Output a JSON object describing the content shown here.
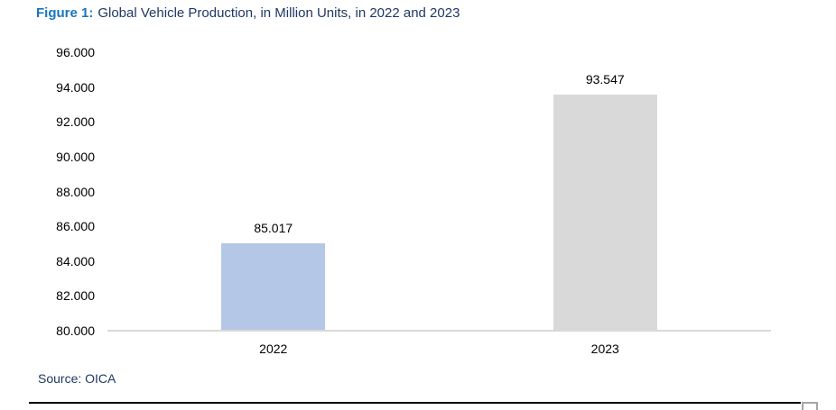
{
  "title": {
    "figure_label": "Figure 1:",
    "text": "Global Vehicle Production, in Million Units, in 2022 and 2023"
  },
  "source": {
    "text": "Source: OICA"
  },
  "chart_data": {
    "type": "bar",
    "title": "Global Vehicle Production, in Million Units, in 2022 and 2023",
    "categories": [
      "2022",
      "2023"
    ],
    "values": [
      85.017,
      93.547
    ],
    "data_labels": [
      "85.017",
      "93.547"
    ],
    "bar_colors": [
      "#B4C7E7",
      "#D9D9D9"
    ],
    "xlabel": "",
    "ylabel": "",
    "ylim": [
      80,
      96
    ],
    "y_tick_step": 2,
    "y_tick_labels": [
      "80.000",
      "82.000",
      "84.000",
      "86.000",
      "88.000",
      "90.000",
      "92.000",
      "94.000",
      "96.000"
    ],
    "grid": false,
    "legend": false,
    "axis_line_color": "#D9D9D9"
  },
  "colors": {
    "figure_label_blue": "#1B75BC",
    "title_navy": "#1F3864",
    "source_navy": "#1F3864",
    "bottom_rule_black": "#000000",
    "corner_box_gray": "#A6A6A6"
  }
}
